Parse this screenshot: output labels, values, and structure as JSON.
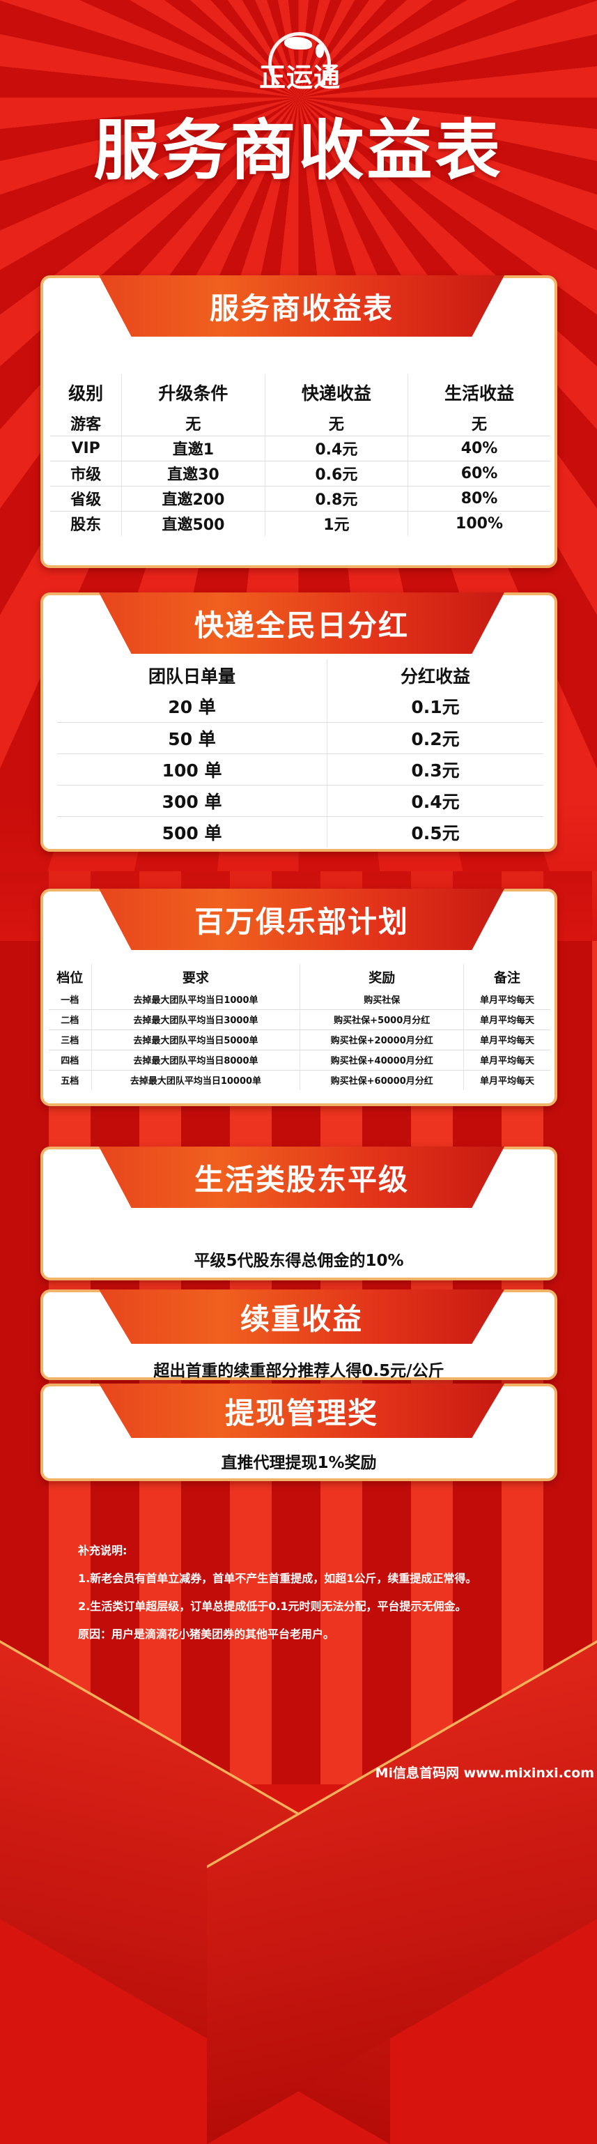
{
  "logo": {
    "text": "正运通",
    "icon": "globe-icon"
  },
  "title": "服务商收益表",
  "colors": {
    "background": "#d8140f",
    "ribbon": "#e8461d",
    "card_border": "#f1b368"
  },
  "card1": {
    "title": "服务商收益表",
    "headers": [
      "级别",
      "升级条件",
      "快递收益",
      "生活收益"
    ],
    "rows": [
      [
        "游客",
        "无",
        "无",
        "无"
      ],
      [
        "VIP",
        "直邀1",
        "0.4元",
        "40%"
      ],
      [
        "市级",
        "直邀30",
        "0.6元",
        "60%"
      ],
      [
        "省级",
        "直邀200",
        "0.8元",
        "80%"
      ],
      [
        "股东",
        "直邀500",
        "1元",
        "100%"
      ]
    ]
  },
  "card2": {
    "title": "快递全民日分红",
    "headers": [
      "团队日单量",
      "分红收益"
    ],
    "rows": [
      [
        "20 单",
        "0.1元"
      ],
      [
        "50 单",
        "0.2元"
      ],
      [
        "100 单",
        "0.3元"
      ],
      [
        "300 单",
        "0.4元"
      ],
      [
        "500 单",
        "0.5元"
      ]
    ]
  },
  "card3": {
    "title": "百万俱乐部计划",
    "headers": [
      "档位",
      "要求",
      "奖励",
      "备注"
    ],
    "rows": [
      [
        "一档",
        "去掉最大团队平均当日1000单",
        "购买社保",
        "单月平均每天"
      ],
      [
        "二档",
        "去掉最大团队平均当日3000单",
        "购买社保+5000月分红",
        "单月平均每天"
      ],
      [
        "三档",
        "去掉最大团队平均当日5000单",
        "购买社保+20000月分红",
        "单月平均每天"
      ],
      [
        "四档",
        "去掉最大团队平均当日8000单",
        "购买社保+40000月分红",
        "单月平均每天"
      ],
      [
        "五档",
        "去掉最大团队平均当日10000单",
        "购买社保+60000月分红",
        "单月平均每天"
      ]
    ]
  },
  "card4": {
    "title": "生活类股东平级",
    "text": "平级5代股东得总佣金的10%"
  },
  "card5": {
    "title": "续重收益",
    "text": "超出首重的续重部分推荐人得0.5元/公斤"
  },
  "card6": {
    "title": "提现管理奖",
    "text": "直推代理提现1%奖励"
  },
  "notes": {
    "heading": "补充说明:",
    "items": [
      "1.新老会员有首单立减券，首单不产生首重提成，如超1公斤，续重提成正常得。",
      "2.生活类订单超层级，订单总提成低于0.1元时则无法分配，平台提示无佣金。",
      "原因：用户是滴滴花小猪美团券的其他平台老用户。"
    ]
  },
  "watermark": "Mi信息首码网 www.mixinxi.com"
}
